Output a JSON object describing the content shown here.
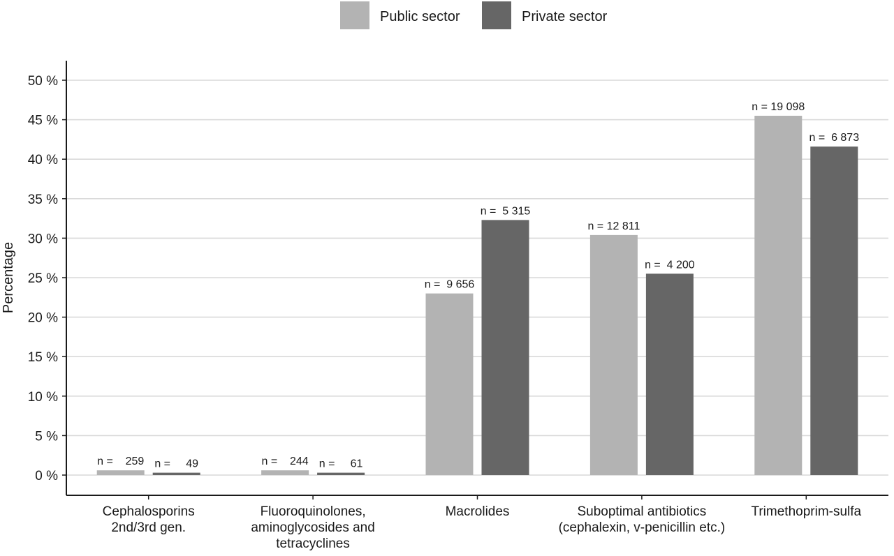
{
  "chart_data": {
    "type": "bar",
    "ylabel": "Percentage",
    "ylim": [
      0,
      50
    ],
    "y_ticks": [
      0,
      5,
      10,
      15,
      20,
      25,
      30,
      35,
      40,
      45,
      50
    ],
    "y_tick_suffix": " %",
    "grid": "horizontal",
    "legend_position": "top",
    "categories": [
      [
        "Cephalosporins",
        "2nd/3rd gen."
      ],
      [
        "Fluoroquinolones,",
        "aminoglycosides and",
        "tetracyclines"
      ],
      [
        "Macrolides"
      ],
      [
        "Suboptimal antibiotics",
        "(cephalexin, v-penicillin etc.)"
      ],
      [
        "Trimethoprim-sulfa"
      ]
    ],
    "series": [
      {
        "name": "Public sector",
        "color": "#b3b3b3",
        "values": [
          0.6,
          0.6,
          23.0,
          30.4,
          45.5
        ],
        "labels": [
          "n =    259",
          "n =    244",
          "n =  9 656",
          "n = 12 811",
          "n = 19 098"
        ]
      },
      {
        "name": "Private sector",
        "color": "#666666",
        "values": [
          0.3,
          0.3,
          32.3,
          25.5,
          41.6
        ],
        "labels": [
          "n =     49",
          "n =     61",
          "n =  5 315",
          "n =  4 200",
          "n =  6 873"
        ]
      }
    ]
  }
}
